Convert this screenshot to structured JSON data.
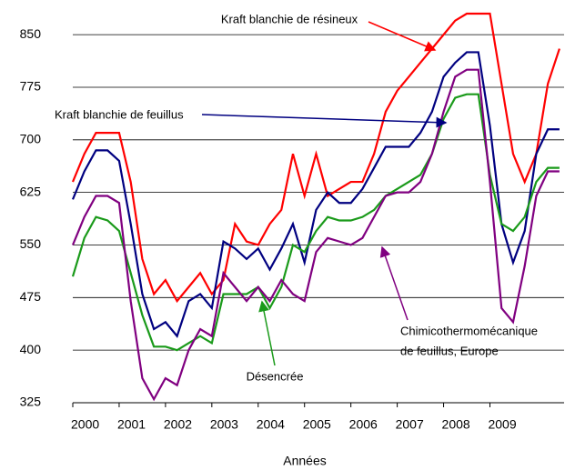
{
  "chart_data": {
    "type": "line",
    "xlabel": "Années",
    "x": [
      2000,
      2000.25,
      2000.5,
      2000.75,
      2001,
      2001.25,
      2001.5,
      2001.75,
      2002,
      2002.25,
      2002.5,
      2002.75,
      2003,
      2003.25,
      2003.5,
      2003.75,
      2004,
      2004.25,
      2004.5,
      2004.75,
      2005,
      2005.25,
      2005.5,
      2005.75,
      2006,
      2006.25,
      2006.5,
      2006.75,
      2007,
      2007.25,
      2007.5,
      2007.75,
      2008,
      2008.25,
      2008.5,
      2008.75,
      2009,
      2009.25,
      2009.5,
      2009.75,
      2010,
      2010.25,
      2010.5
    ],
    "xlim": [
      2000,
      2010.6
    ],
    "xticks": [
      2000,
      2001,
      2002,
      2003,
      2004,
      2005,
      2006,
      2007,
      2008,
      2009
    ],
    "ylim": [
      325,
      880
    ],
    "yticks": [
      325,
      400,
      475,
      550,
      625,
      700,
      775,
      850
    ],
    "grid": true,
    "series": [
      {
        "name": "Kraft blanchie de résineux",
        "color": "#ff0000",
        "values": [
          640,
          680,
          710,
          710,
          710,
          640,
          530,
          480,
          500,
          470,
          490,
          510,
          480,
          500,
          580,
          555,
          550,
          580,
          600,
          680,
          620,
          680,
          620,
          630,
          640,
          640,
          680,
          740,
          770,
          790,
          810,
          830,
          850,
          870,
          880,
          880,
          880,
          780,
          680,
          640,
          680,
          780,
          830
        ]
      },
      {
        "name": "Kraft blanchie de feuillus",
        "color": "#000080",
        "values": [
          615,
          655,
          685,
          685,
          670,
          580,
          480,
          430,
          440,
          420,
          470,
          480,
          460,
          555,
          545,
          530,
          545,
          515,
          545,
          580,
          525,
          600,
          625,
          610,
          610,
          630,
          660,
          690,
          690,
          690,
          710,
          740,
          790,
          810,
          825,
          825,
          720,
          580,
          525,
          570,
          680,
          715,
          715
        ]
      },
      {
        "name": "Désencrée",
        "color": "#1a9a1a",
        "values": [
          505,
          560,
          590,
          585,
          570,
          510,
          450,
          405,
          405,
          400,
          410,
          420,
          410,
          480,
          480,
          480,
          490,
          460,
          490,
          550,
          540,
          570,
          590,
          585,
          585,
          590,
          600,
          620,
          630,
          640,
          650,
          680,
          730,
          760,
          765,
          765,
          650,
          580,
          570,
          590,
          640,
          660,
          660
        ]
      },
      {
        "name": "Chimicothermomécanique de feuillus, Europe",
        "color": "#800080",
        "values": [
          550,
          590,
          620,
          620,
          610,
          470,
          360,
          330,
          360,
          350,
          400,
          430,
          420,
          510,
          490,
          470,
          490,
          470,
          500,
          480,
          470,
          540,
          560,
          555,
          550,
          560,
          590,
          620,
          625,
          625,
          640,
          680,
          740,
          790,
          800,
          800,
          640,
          460,
          440,
          520,
          620,
          655,
          655
        ]
      }
    ],
    "annotations": [
      {
        "lines": [
          "Kraft blanchie de résineux"
        ],
        "color": "#ff0000"
      },
      {
        "lines": [
          "Kraft blanchie de feuillus"
        ],
        "color": "#000080"
      },
      {
        "lines": [
          "Désencrée"
        ],
        "color": "#1a9a1a"
      },
      {
        "lines": [
          "Chimicothermomécanique",
          "de feuillus, Europe"
        ],
        "color": "#800080"
      }
    ]
  }
}
